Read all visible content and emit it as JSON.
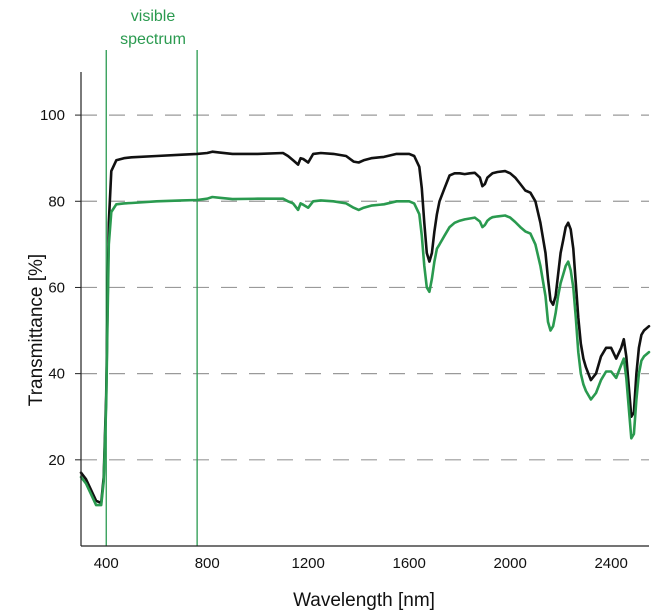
{
  "chart_data": {
    "type": "line",
    "xlabel": "Wavelength [nm]",
    "ylabel": "Transmittance [%]",
    "xlim": [
      300,
      2550
    ],
    "ylim": [
      0,
      110
    ],
    "x_ticks": [
      400,
      800,
      1200,
      1600,
      2000,
      2400
    ],
    "y_ticks": [
      20,
      40,
      60,
      80,
      100
    ],
    "grid": "horizontal dashed",
    "legend": "none",
    "annotations": [
      {
        "text_lines": [
          "visible",
          "spectrum"
        ],
        "x_start": 400,
        "x_end": 760,
        "color": "#2a9a4f"
      }
    ],
    "series": [
      {
        "color": "#111111",
        "x": [
          300,
          320,
          340,
          360,
          380,
          390,
          400,
          405,
          410,
          420,
          440,
          470,
          500,
          600,
          700,
          760,
          800,
          820,
          850,
          900,
          1000,
          1100,
          1120,
          1140,
          1160,
          1170,
          1180,
          1200,
          1220,
          1250,
          1300,
          1350,
          1380,
          1400,
          1420,
          1450,
          1500,
          1550,
          1600,
          1620,
          1640,
          1650,
          1660,
          1670,
          1680,
          1690,
          1700,
          1710,
          1720,
          1740,
          1760,
          1780,
          1800,
          1820,
          1840,
          1860,
          1880,
          1890,
          1900,
          1910,
          1920,
          1930,
          1950,
          1980,
          2000,
          2020,
          2040,
          2060,
          2080,
          2100,
          2120,
          2140,
          2150,
          2160,
          2170,
          2180,
          2190,
          2200,
          2210,
          2220,
          2230,
          2240,
          2250,
          2260,
          2270,
          2280,
          2290,
          2300,
          2320,
          2340,
          2360,
          2380,
          2400,
          2420,
          2440,
          2450,
          2460,
          2470,
          2480,
          2490,
          2500,
          2510,
          2520,
          2530,
          2550
        ],
        "values": [
          17,
          15.5,
          13,
          10.5,
          10,
          16,
          35,
          55,
          75,
          87,
          89.5,
          90,
          90.2,
          90.5,
          90.8,
          91,
          91.2,
          91.5,
          91.3,
          91,
          91,
          91.2,
          90.5,
          89.5,
          88.5,
          90,
          89.8,
          89,
          91,
          91.2,
          91,
          90.5,
          89.2,
          89,
          89.5,
          90,
          90.3,
          91,
          91,
          90.5,
          88,
          83,
          75,
          68,
          66,
          68,
          73,
          77,
          80,
          83,
          86,
          86.5,
          86.5,
          86.3,
          86.5,
          86.6,
          85.5,
          83.5,
          84,
          85.5,
          86,
          86.5,
          86.8,
          87,
          86.5,
          85.5,
          84,
          82.5,
          82,
          80,
          75,
          68,
          62,
          57,
          56,
          58,
          63,
          68,
          71,
          74,
          75,
          73.5,
          69,
          61,
          53,
          47,
          43.5,
          41.5,
          38.5,
          40,
          44,
          46,
          46,
          43.5,
          46,
          48,
          44,
          37,
          30,
          31,
          40,
          46,
          49,
          50,
          51
        ]
      },
      {
        "color": "#2a9a4f",
        "x": [
          300,
          320,
          340,
          360,
          380,
          390,
          400,
          405,
          410,
          420,
          440,
          470,
          500,
          600,
          700,
          760,
          800,
          820,
          850,
          900,
          1000,
          1100,
          1120,
          1140,
          1160,
          1170,
          1180,
          1200,
          1220,
          1250,
          1300,
          1350,
          1380,
          1400,
          1420,
          1450,
          1500,
          1550,
          1600,
          1620,
          1640,
          1650,
          1660,
          1670,
          1680,
          1690,
          1700,
          1710,
          1720,
          1740,
          1760,
          1780,
          1800,
          1820,
          1840,
          1860,
          1880,
          1890,
          1900,
          1910,
          1920,
          1930,
          1950,
          1980,
          2000,
          2020,
          2040,
          2060,
          2080,
          2100,
          2120,
          2140,
          2150,
          2160,
          2170,
          2180,
          2190,
          2200,
          2210,
          2220,
          2230,
          2240,
          2250,
          2260,
          2270,
          2280,
          2290,
          2300,
          2320,
          2340,
          2360,
          2380,
          2400,
          2420,
          2440,
          2450,
          2460,
          2470,
          2480,
          2490,
          2500,
          2510,
          2520,
          2530,
          2550
        ],
        "values": [
          16,
          14.5,
          12,
          9.5,
          9.5,
          15,
          33,
          52,
          70,
          77.5,
          79.3,
          79.5,
          79.6,
          80,
          80.2,
          80.3,
          80.6,
          81,
          80.8,
          80.5,
          80.6,
          80.6,
          80,
          79.5,
          78,
          79.5,
          79.2,
          78.5,
          80,
          80.2,
          80,
          79.5,
          78.5,
          78,
          78.5,
          79,
          79.3,
          80,
          80,
          79.5,
          77,
          72,
          65,
          60,
          59,
          62,
          66,
          69,
          70,
          72,
          74,
          75,
          75.5,
          75.8,
          76,
          76.2,
          75.3,
          74,
          74.5,
          75.5,
          76,
          76.3,
          76.5,
          76.7,
          76.2,
          75.2,
          74,
          73,
          72.5,
          70,
          65,
          58,
          52,
          50,
          51,
          54,
          58,
          61,
          63,
          65,
          66,
          64,
          60,
          53,
          45,
          40,
          37.5,
          36,
          34,
          35.5,
          38.5,
          40.5,
          40.5,
          39,
          42,
          43.5,
          39,
          32,
          25,
          26,
          34,
          40,
          43,
          44,
          45
        ]
      }
    ]
  }
}
